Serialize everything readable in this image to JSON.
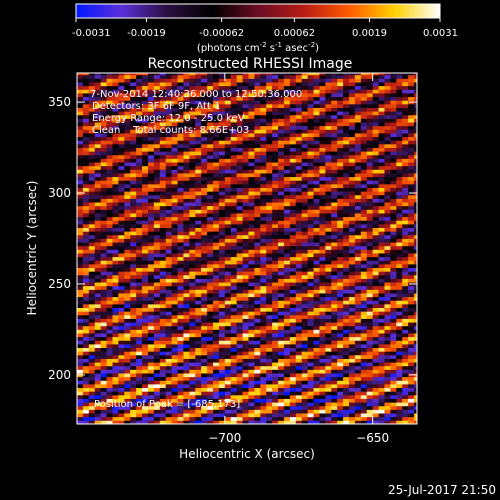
{
  "footer_date": "25-Jul-2017 21:50",
  "colorbar": {
    "tick_labels": [
      "-0.0031",
      "-0.0019",
      "-0.00062",
      "0.00062",
      "0.0019",
      "0.0031"
    ],
    "range": [
      -0.0031,
      0.0031
    ],
    "units_parts": [
      "(photons cm",
      "-2",
      " s",
      "-1",
      " asec",
      "-2",
      ")"
    ],
    "colormap_stops": [
      "#0018ff",
      "#5b2fd9",
      "#2a1040",
      "#000000",
      "#6a0d25",
      "#b81b14",
      "#ff5a00",
      "#ffd000",
      "#ffffff"
    ]
  },
  "chart_data": {
    "type": "heatmap",
    "title": "Reconstructed RHESSI Image",
    "xlabel": "Heliocentric X (arcsec)",
    "ylabel": "Heliocentric Y (arcsec)",
    "xlim": [
      -750,
      -635
    ],
    "ylim": [
      173,
      366
    ],
    "x_ticks": [
      -700,
      -650,
      -600
    ],
    "y_ticks": [
      200,
      250,
      300,
      350
    ],
    "pattern": "diagonal striped reconstruction noise (lower-left to upper-right stripes), values span colorbar range",
    "value_range": [
      -0.0031,
      0.0031
    ],
    "annotations": [
      "7-Nov-2014 12:40:36.000 to 12:50:36.000",
      "Detectors: 3F 6F 9F, Att 1",
      "Energy Range: 12.0 - 25.0 keV",
      "Clean    Total counts: 8.66E+03"
    ],
    "peak_label": "Position of Peak = [-685,173]"
  }
}
